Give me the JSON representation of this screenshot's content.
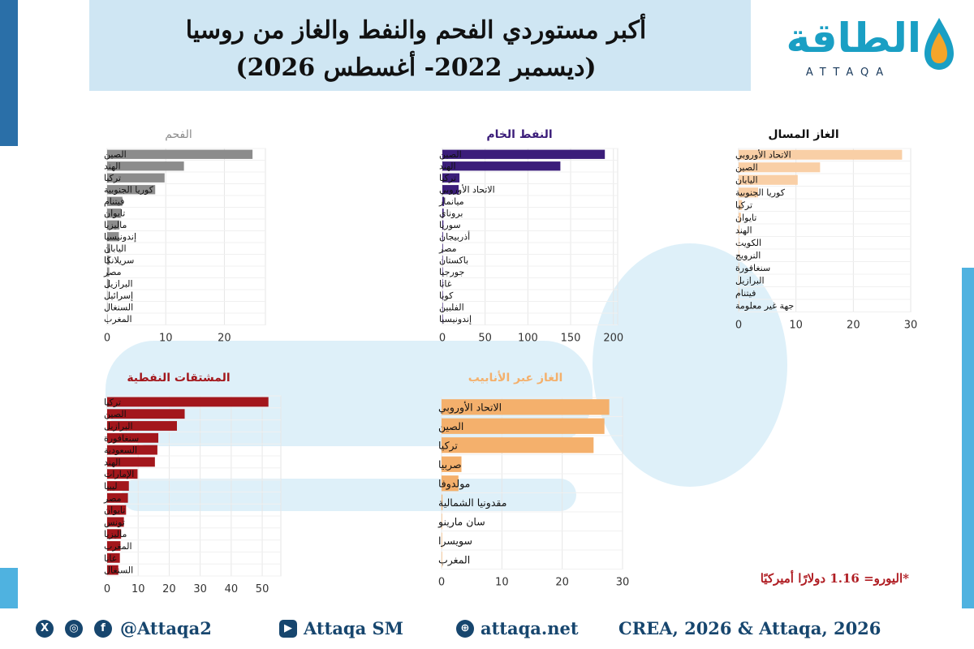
{
  "header": {
    "title_line1": "أكبر مستوردي الفحم والنفط والغاز من روسيا",
    "title_line2": "(ديسمبر 2022- أغسطس 2026)"
  },
  "logo": {
    "arabic": "الطاقة",
    "latin": "ATTAQA"
  },
  "note": "*اليورو= 1.16 دولارًا أميركيًا",
  "footer": {
    "social_handle": "@Attaqa2",
    "youtube": "Attaqa SM",
    "website": "attaqa.net",
    "source": "CREA, 2026 & Attaqa, 2026",
    "icons": [
      "x-icon",
      "instagram-icon",
      "facebook-icon",
      "youtube-icon",
      "globe-icon"
    ]
  },
  "colors": {
    "coal": "#8c8c8c",
    "crude": "#3b1d7a",
    "lng": "#f9cfa6",
    "products": "#a3171c",
    "pipeline": "#f4b06c",
    "accent": "#17466e"
  },
  "chart_data": [
    {
      "id": "coal",
      "type": "bar",
      "orientation": "horizontal",
      "title": "الفحم",
      "categories": [
        "الصين",
        "الهند",
        "تركيا",
        "كوريا الجنوبية",
        "فيتنام",
        "تايوان",
        "ماليزيا",
        "إندونيسيا",
        "اليابان",
        "سريلانكا",
        "مصر",
        "البرازيل",
        "إسرائيل",
        "السنغال",
        "المغرب"
      ],
      "values": [
        24.8,
        13.1,
        9.8,
        8.2,
        2.6,
        2.4,
        2.1,
        2.0,
        0.5,
        0.4,
        0.35,
        0.25,
        0.05,
        0.04,
        0.03
      ],
      "xlim": [
        0,
        27
      ],
      "xticks": [
        0,
        10,
        20
      ],
      "grid": true
    },
    {
      "id": "crude",
      "type": "bar",
      "orientation": "horizontal",
      "title": "النفط الخام",
      "categories": [
        "الصين",
        "الهند",
        "تركيا",
        "الاتحاد الأوروبي",
        "ميانمار",
        "بروناي",
        "سوريا",
        "أذربيجان",
        "مصر",
        "باكستان",
        "جورجيا",
        "غانا",
        "كوبا",
        "الفلبين",
        "إندونيسيا"
      ],
      "values": [
        190,
        138,
        20,
        19,
        2,
        1.5,
        1.2,
        0.8,
        0.7,
        0.6,
        0.5,
        0.4,
        0.3,
        0.2,
        0.1
      ],
      "xlim": [
        0,
        205
      ],
      "xticks": [
        0,
        50,
        100,
        150,
        200
      ],
      "grid": true
    },
    {
      "id": "lng",
      "type": "bar",
      "orientation": "horizontal",
      "title": "الغاز المسال",
      "categories": [
        "الاتحاد الأوروبي",
        "الصين",
        "اليابان",
        "كوريا الجنوبية",
        "تركيا",
        "تايوان",
        "الهند",
        "الكويت",
        "النرويج",
        "سنغافورة",
        "البرازيل",
        "فيتنام",
        "جهة غير معلومة"
      ],
      "values": [
        28.5,
        14.2,
        10.3,
        3.4,
        0.6,
        0.4,
        0.15,
        0.1,
        0.1,
        0.05,
        0.05,
        0.05,
        0.05
      ],
      "xlim": [
        0,
        30
      ],
      "xticks": [
        0,
        10,
        20,
        30
      ],
      "grid": true
    },
    {
      "id": "products",
      "type": "bar",
      "orientation": "horizontal",
      "title": "المشتقات النفطية",
      "categories": [
        "تركيا",
        "الصين",
        "البرازيل",
        "سنغافورة",
        "السعودية",
        "الهند",
        "الإمارات",
        "ليبيا",
        "مصر",
        "تايوان",
        "تونس",
        "ماليزيا",
        "المغرب",
        "غانا",
        "السنغال"
      ],
      "values": [
        52,
        25,
        22.5,
        16.5,
        16.2,
        15.4,
        9.8,
        7,
        6.7,
        6.1,
        5.4,
        4.5,
        4.3,
        4.1,
        3.6
      ],
      "xlim": [
        0,
        56
      ],
      "xticks": [
        0,
        10,
        20,
        30,
        40,
        50
      ],
      "grid": true
    },
    {
      "id": "pipeline",
      "type": "bar",
      "orientation": "horizontal",
      "title": "الغاز عبر الأنابيب",
      "categories": [
        "الاتحاد الأوروبي",
        "الصين",
        "تركيا",
        "صربيا",
        "مولدوفا",
        "مقدونيا الشمالية",
        "سان مارينو",
        "سويسرا",
        "المغرب"
      ],
      "values": [
        27.8,
        27.0,
        25.2,
        3.3,
        2.8,
        0.15,
        0.05,
        0.03,
        0.02
      ],
      "xlim": [
        0,
        30
      ],
      "xticks": [
        0,
        10,
        20,
        30
      ],
      "grid": true
    }
  ]
}
